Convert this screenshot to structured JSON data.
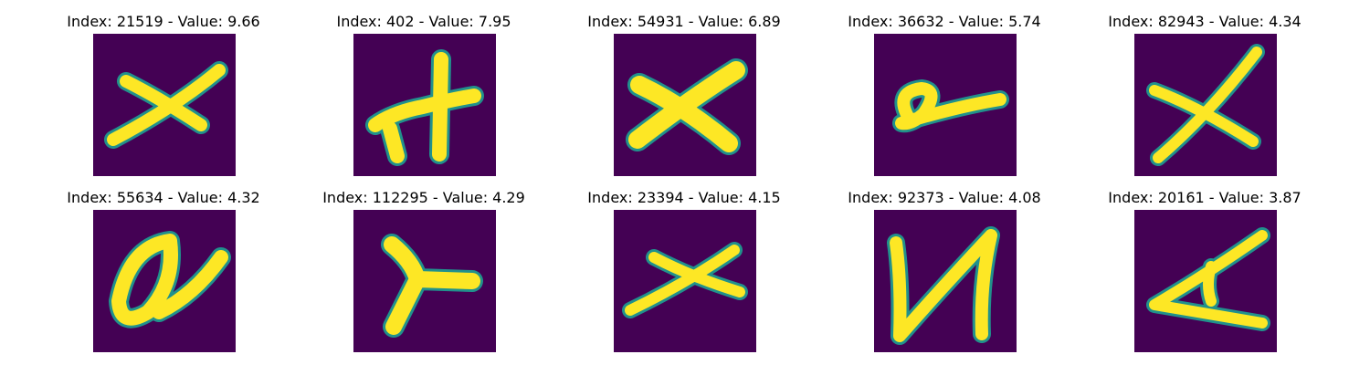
{
  "colors": {
    "background": "#440154",
    "stroke": "#fde725",
    "edge": "#21918c"
  },
  "panels": [
    {
      "title": "Index: 21519 - Value: 9.66",
      "glyph": "x"
    },
    {
      "title": "Index: 402 - Value: 7.95",
      "glyph": "h-cross"
    },
    {
      "title": "Index: 54931 - Value: 6.89",
      "glyph": "x-thick"
    },
    {
      "title": "Index: 36632 - Value: 5.74",
      "glyph": "loop-tail"
    },
    {
      "title": "Index: 82943 - Value: 4.34",
      "glyph": "x-tall"
    },
    {
      "title": "Index: 55634 - Value: 4.32",
      "glyph": "a-loop"
    },
    {
      "title": "Index: 112295 - Value: 4.29",
      "glyph": "y-rotated"
    },
    {
      "title": "Index: 23394 - Value: 4.15",
      "glyph": "x-wide"
    },
    {
      "title": "Index: 92373 - Value: 4.08",
      "glyph": "u-shape"
    },
    {
      "title": "Index: 20161 - Value: 3.87",
      "glyph": "a-rotated"
    }
  ]
}
